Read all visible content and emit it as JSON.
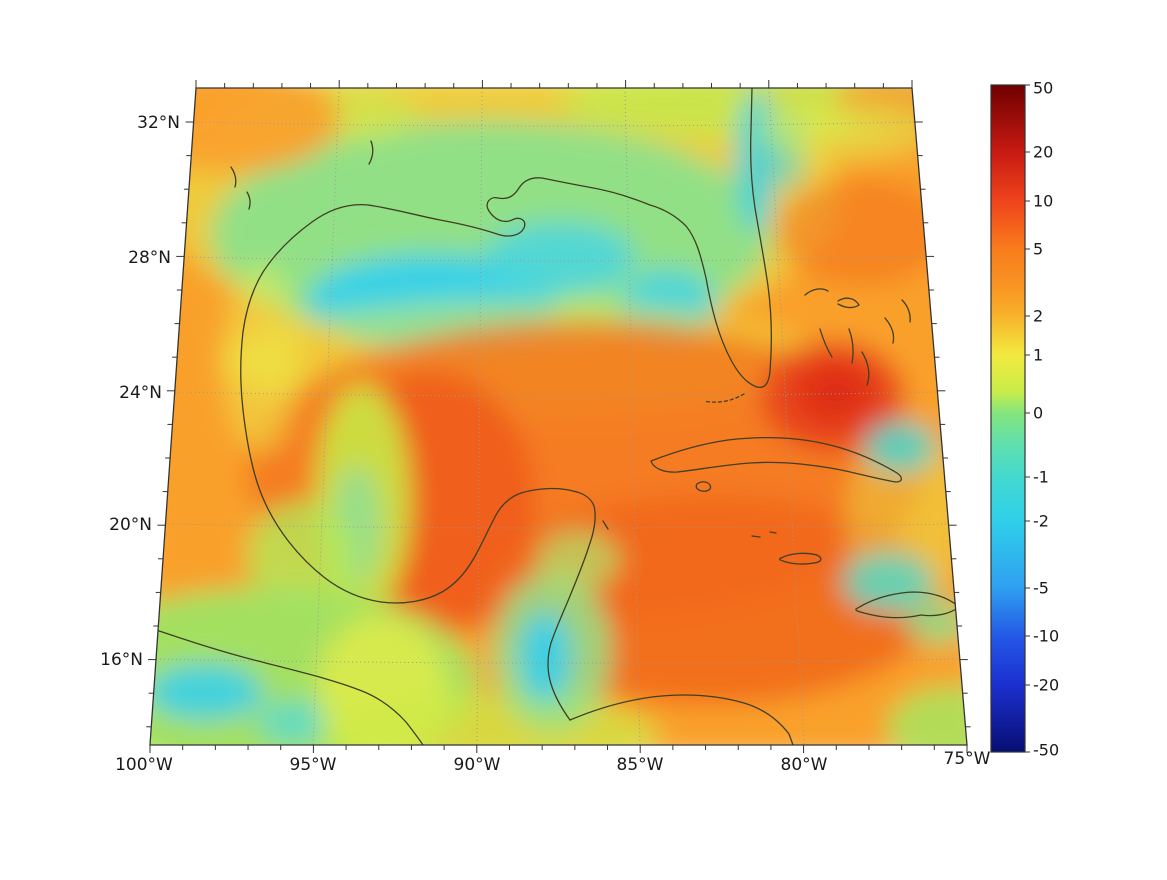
{
  "map": {
    "lat_ticks": [
      "32°N",
      "28°N",
      "24°N",
      "20°N",
      "16°N"
    ],
    "lon_ticks": [
      "100°W",
      "95°W",
      "90°W",
      "85°W",
      "80°W",
      "75°W"
    ]
  },
  "colorbar": {
    "tick_labels": [
      "50",
      "20",
      "10",
      "5",
      "2",
      "1",
      "0",
      "-1",
      "-2",
      "-5",
      "-10",
      "-20",
      "-50"
    ],
    "max_color": "#6f0000",
    "zero_color": "#84e57e",
    "min_color": "#070f72"
  },
  "palette": {
    "field_orange": "#f9a02c",
    "field_deep_orange": "#ee5a1c",
    "field_red": "#de2a15",
    "field_yellow": "#e9ef45",
    "field_green": "#8ce08a",
    "field_cyan": "#38d2e6",
    "coastline": "#3f3f22",
    "graticule": "#999999",
    "frame": "#333333"
  }
}
